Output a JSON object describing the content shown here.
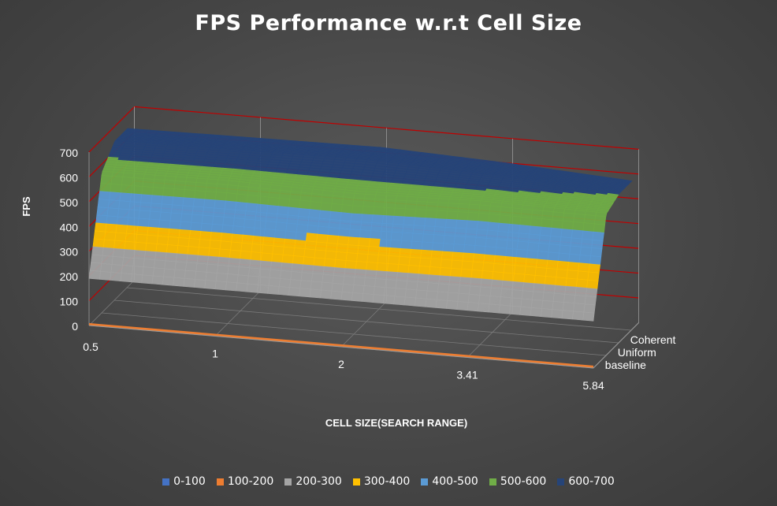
{
  "chart_data": {
    "type": "area",
    "subtype": "3d-surface",
    "title": "FPS Performance w.r.t Cell Size",
    "xlabel": "CELL SIZE(SEARCH RANGE)",
    "ylabel": "FPS",
    "categories": [
      "0.5",
      "1",
      "2",
      "3.41",
      "5.84"
    ],
    "depth_categories": [
      "baseline",
      "Uniform",
      "Coherent"
    ],
    "zlim": [
      0,
      700
    ],
    "z_ticks": [
      "0",
      "100",
      "200",
      "300",
      "400",
      "500",
      "600",
      "700"
    ],
    "series": [
      {
        "name": "baseline",
        "values": [
          190,
          190,
          190,
          190,
          190
        ]
      },
      {
        "name": "Uniform",
        "values": [
          565,
          570,
          560,
          575,
          570
        ]
      },
      {
        "name": "Coherent",
        "values": [
          640,
          645,
          650,
          630,
          600
        ]
      }
    ],
    "band_ranges": [
      "0-100",
      "100-200",
      "200-300",
      "300-400",
      "400-500",
      "500-600",
      "600-700"
    ],
    "band_colors": [
      "#4472c4",
      "#ed7d31",
      "#a5a5a5",
      "#ffc000",
      "#5b9bd5",
      "#70ad47",
      "#264478"
    ],
    "grid": true,
    "grid_color": "#c00000",
    "legend_position": "bottom"
  }
}
